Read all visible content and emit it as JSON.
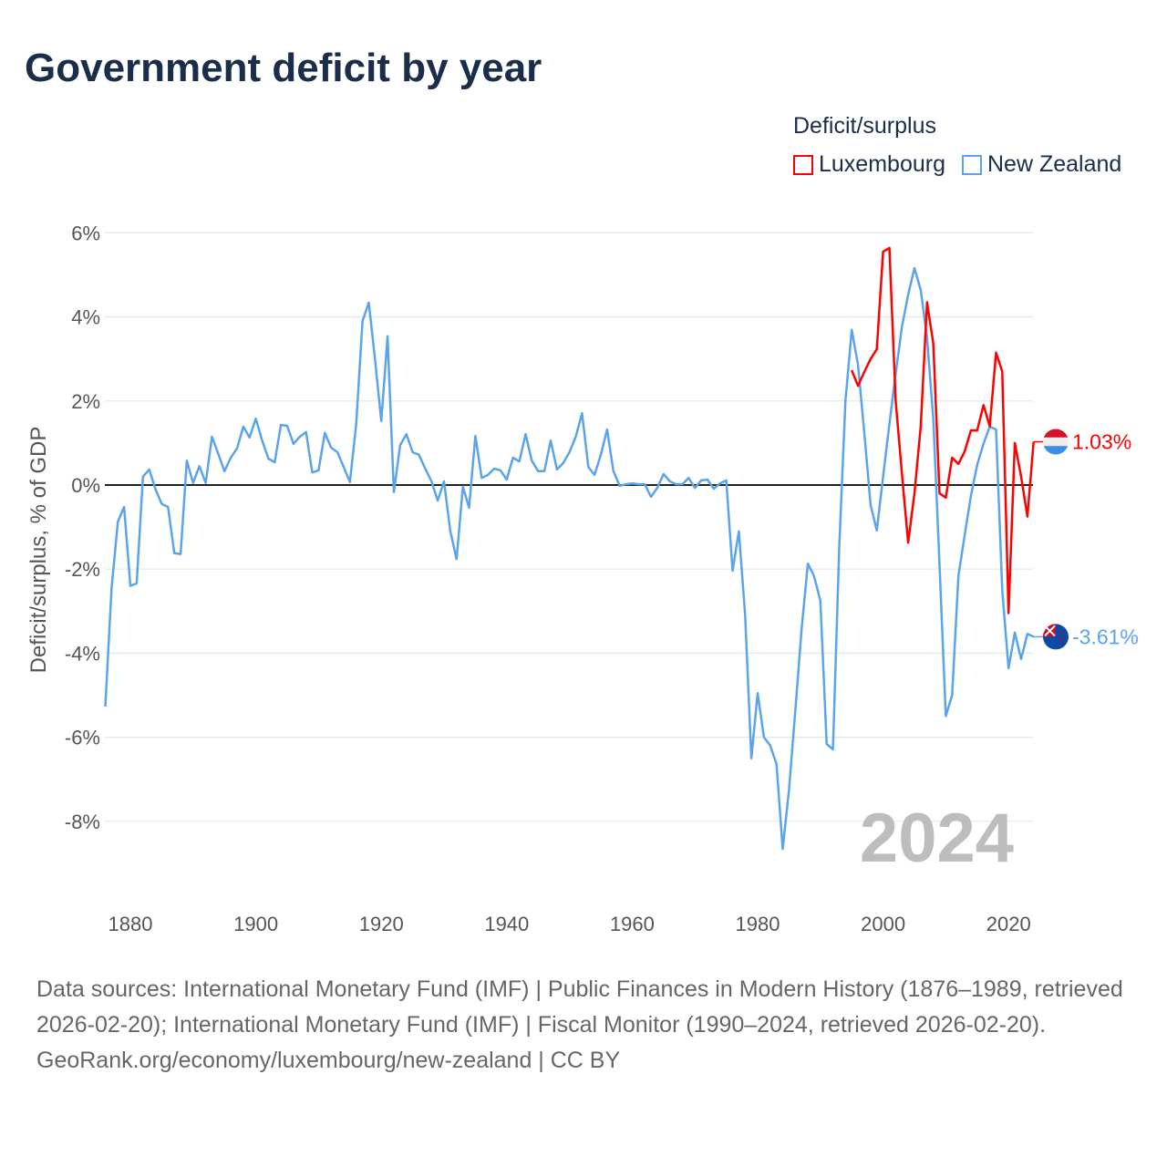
{
  "title": "Government deficit by year",
  "legend": {
    "title": "Deficit/surplus",
    "items": [
      {
        "label": "Luxembourg",
        "color": "#ff0000"
      },
      {
        "label": "New Zealand",
        "color": "#5ba4ea"
      }
    ]
  },
  "chart_data": {
    "type": "line",
    "title": "Government deficit by year",
    "xlabel": "",
    "ylabel": "Deficit/surplus, % of GDP",
    "xlim": [
      1876,
      2024
    ],
    "ylim": [
      -9.5,
      6
    ],
    "xticks": [
      1880,
      1900,
      1920,
      1940,
      1960,
      1980,
      2000,
      2020
    ],
    "yticks": [
      6,
      4,
      2,
      0,
      -2,
      -4,
      -6,
      -8
    ],
    "ytick_labels": [
      "6%",
      "4%",
      "2%",
      "0%",
      "-2%",
      "-4%",
      "-6%",
      "-8%"
    ],
    "grid": true,
    "legend_position": "top-right",
    "annotation": "2024",
    "series": [
      {
        "name": "Luxembourg",
        "color": "#ff0000",
        "start_year": 1995,
        "end_label": "1.03%",
        "values": [
          2.73,
          2.36,
          2.69,
          3.0,
          3.23,
          5.55,
          5.64,
          2.0,
          0.26,
          -1.37,
          -0.2,
          1.4,
          4.35,
          3.36,
          -0.2,
          -0.3,
          0.65,
          0.5,
          0.8,
          1.3,
          1.3,
          1.9,
          1.4,
          3.15,
          2.7,
          -3.05,
          1.0,
          0.2,
          -0.75,
          1.03
        ]
      },
      {
        "name": "New Zealand",
        "color": "#5ba4ea",
        "start_year": 1876,
        "end_label": "-3.61%",
        "values": [
          -5.27,
          -2.45,
          -0.87,
          -0.52,
          -2.4,
          -2.34,
          0.2,
          0.37,
          -0.1,
          -0.45,
          -0.52,
          -1.62,
          -1.64,
          0.58,
          0.05,
          0.45,
          0.05,
          1.15,
          0.75,
          0.33,
          0.65,
          0.87,
          1.39,
          1.13,
          1.58,
          1.06,
          0.63,
          0.54,
          1.43,
          1.41,
          0.98,
          1.15,
          1.26,
          0.3,
          0.35,
          1.24,
          0.89,
          0.78,
          0.43,
          0.07,
          1.45,
          3.9,
          4.34,
          3.0,
          1.52,
          3.54,
          -0.17,
          0.95,
          1.21,
          0.78,
          0.72,
          0.39,
          0.09,
          -0.37,
          0.09,
          -1.1,
          -1.76,
          -0.04,
          -0.54,
          1.17,
          0.17,
          0.24,
          0.39,
          0.35,
          0.13,
          0.65,
          0.56,
          1.21,
          0.58,
          0.33,
          0.33,
          1.06,
          0.37,
          0.52,
          0.78,
          1.15,
          1.71,
          0.43,
          0.24,
          0.72,
          1.32,
          0.33,
          -0.02,
          0.02,
          0.04,
          0.02,
          0.02,
          -0.28,
          -0.07,
          0.26,
          0.09,
          0.02,
          0.02,
          0.17,
          -0.07,
          0.11,
          0.13,
          -0.09,
          0.04,
          0.11,
          -2.04,
          -1.1,
          -3.1,
          -6.5,
          -4.95,
          -6.0,
          -6.2,
          -6.64,
          -8.66,
          -7.25,
          -5.38,
          -3.43,
          -1.87,
          -2.17,
          -2.75,
          -6.16,
          -6.29,
          -1.48,
          2.0,
          3.69,
          2.86,
          1.24,
          -0.48,
          -1.08,
          0.2,
          1.45,
          2.65,
          3.77,
          4.53,
          5.16,
          4.64,
          3.51,
          1.56,
          -1.9,
          -5.5,
          -5.0,
          -2.17,
          -1.19,
          -0.26,
          0.48,
          0.98,
          1.39,
          1.32,
          -2.5,
          -4.36,
          -3.51,
          -4.14,
          -3.54,
          -3.61
        ]
      }
    ]
  },
  "footer": {
    "sources": "Data sources: International Monetary Fund (IMF) | Public Finances in Modern History (1876–1989, retrieved 2026-02-20); International Monetary Fund (IMF) | Fiscal Monitor (1990–2024, retrieved 2026-02-20).",
    "credit": "GeoRank.org/economy/luxembourg/new-zealand | CC BY"
  }
}
